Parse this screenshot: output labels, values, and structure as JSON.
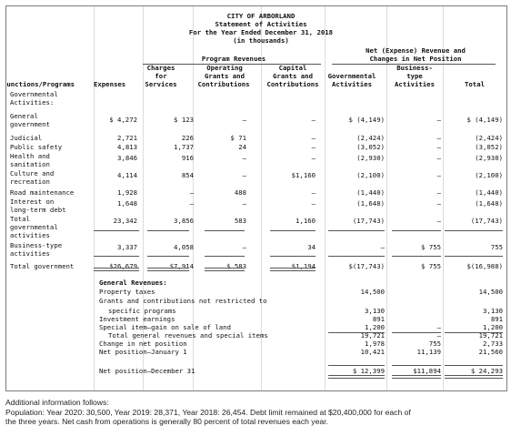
{
  "header": {
    "entity": "CITY OF ARBORLAND",
    "statement": "Statement of Activities",
    "period": "For the Year Ended December 31, 2018",
    "units": "(in thousands)"
  },
  "columns": {
    "program_revenues": "Program Revenues",
    "net_header_1": "Net (Expense) Revenue and",
    "net_header_2": "Changes in Net Position",
    "charges_1": "Charges",
    "charges_2": "for",
    "charges_3": "Services",
    "operating_1": "Operating",
    "operating_2": "Grants and",
    "operating_3": "Contributions",
    "capital_1": "Capital",
    "capital_2": "Grants and",
    "capital_3": "Contributions",
    "governmental_1": "Governmental",
    "governmental_2": "Activities",
    "bt_1": "Business-",
    "bt_2": "type",
    "bt_3": "Activities",
    "total": "Total",
    "functions": "Functions/Programs",
    "expenses": "Expenses"
  },
  "section_gov": "Governmental",
  "section_gov2": "Activities:",
  "rows": [
    {
      "l1": "General",
      "l2": "government",
      "expenses": "$ 4,272",
      "charges": "$   123",
      "operating": "—",
      "capital": "—",
      "gov": "$ (4,149)",
      "bt": "—",
      "total": "$ (4,149)"
    },
    {
      "l1": "Judicial",
      "l2": "",
      "expenses": "2,721",
      "charges": "226",
      "operating": "$   71",
      "capital": "—",
      "gov": "(2,424)",
      "bt": "—",
      "total": "(2,424)"
    },
    {
      "l1": "Public safety",
      "l2": "",
      "expenses": "4,813",
      "charges": "1,737",
      "operating": "24",
      "capital": "—",
      "gov": "(3,052)",
      "bt": "—",
      "total": "(3,052)"
    },
    {
      "l1": "Health and",
      "l2": "sanitation",
      "expenses": "3,846",
      "charges": "916",
      "operating": "—",
      "capital": "—",
      "gov": "(2,930)",
      "bt": "—",
      "total": "(2,930)"
    },
    {
      "l1": "Culture and",
      "l2": "recreation",
      "expenses": "4,114",
      "charges": "854",
      "operating": "—",
      "capital": "$1,160",
      "gov": "(2,100)",
      "bt": "—",
      "total": "(2,100)"
    },
    {
      "l1": "Road maintenance",
      "l2": "",
      "expenses": "1,928",
      "charges": "—",
      "operating": "488",
      "capital": "—",
      "gov": "(1,440)",
      "bt": "—",
      "total": "(1,440)"
    },
    {
      "l1": "Interest on",
      "l2": "long-term debt",
      "expenses": "1,648",
      "charges": "—",
      "operating": "—",
      "capital": "—",
      "gov": "(1,648)",
      "bt": "—",
      "total": "(1,648)"
    },
    {
      "l1": "Total",
      "l2": "governmental",
      "l3": "activities",
      "expenses": "23,342",
      "charges": "3,856",
      "operating": "583",
      "capital": "1,160",
      "gov": "(17,743)",
      "bt": "—",
      "total": "(17,743)"
    },
    {
      "l1": "Business-type",
      "l2": "activities",
      "expenses": "3,337",
      "charges": "4,058",
      "operating": "—",
      "capital": "34",
      "gov": "—",
      "bt": "$    755",
      "total": "755"
    },
    {
      "l1": "Total government",
      "l2": "",
      "expenses": "$26,679",
      "charges": "$7,914",
      "operating": "$  583",
      "capital": "$1,194",
      "gov": "$(17,743)",
      "bt": "$    755",
      "total": "$(16,988)"
    }
  ],
  "general": {
    "heading": "General Revenues:",
    "items": [
      {
        "label": "Property taxes",
        "gov": "14,500",
        "bt": "",
        "total": "14,500"
      },
      {
        "label": "Grants and contributions not restricted to",
        "gov": "",
        "bt": "",
        "total": ""
      },
      {
        "label": "specific programs",
        "gov": "3,130",
        "bt": "",
        "total": "3,130"
      },
      {
        "label": "Investment earnings",
        "gov": "891",
        "bt": "",
        "total": "891"
      },
      {
        "label": "Special item—gain on sale of land",
        "gov": "1,200",
        "bt": "—",
        "total": "1,200"
      },
      {
        "label": "Total general revenues and special items",
        "gov": "19,721",
        "bt": "—",
        "total": "19,721"
      },
      {
        "label": "Change in net position",
        "gov": "1,978",
        "bt": "755",
        "total": "2,733"
      },
      {
        "label": "Net position—January 1",
        "gov": "10,421",
        "bt": "11,139",
        "total": "21,560"
      },
      {
        "label": "Net position—December 31",
        "gov": "$ 12,399",
        "bt": "$11,894",
        "total": "$ 24,293"
      }
    ]
  },
  "notes": {
    "heading": "Additional information follows:",
    "line1": "Population: Year 2020: 30,500, Year 2019: 28,371, Year 2018: 26,454. Debt limit remained at $20,400,000 for each of",
    "line2": "the three years. Net cash from operations is generally 80 percent of total revenues each year."
  }
}
